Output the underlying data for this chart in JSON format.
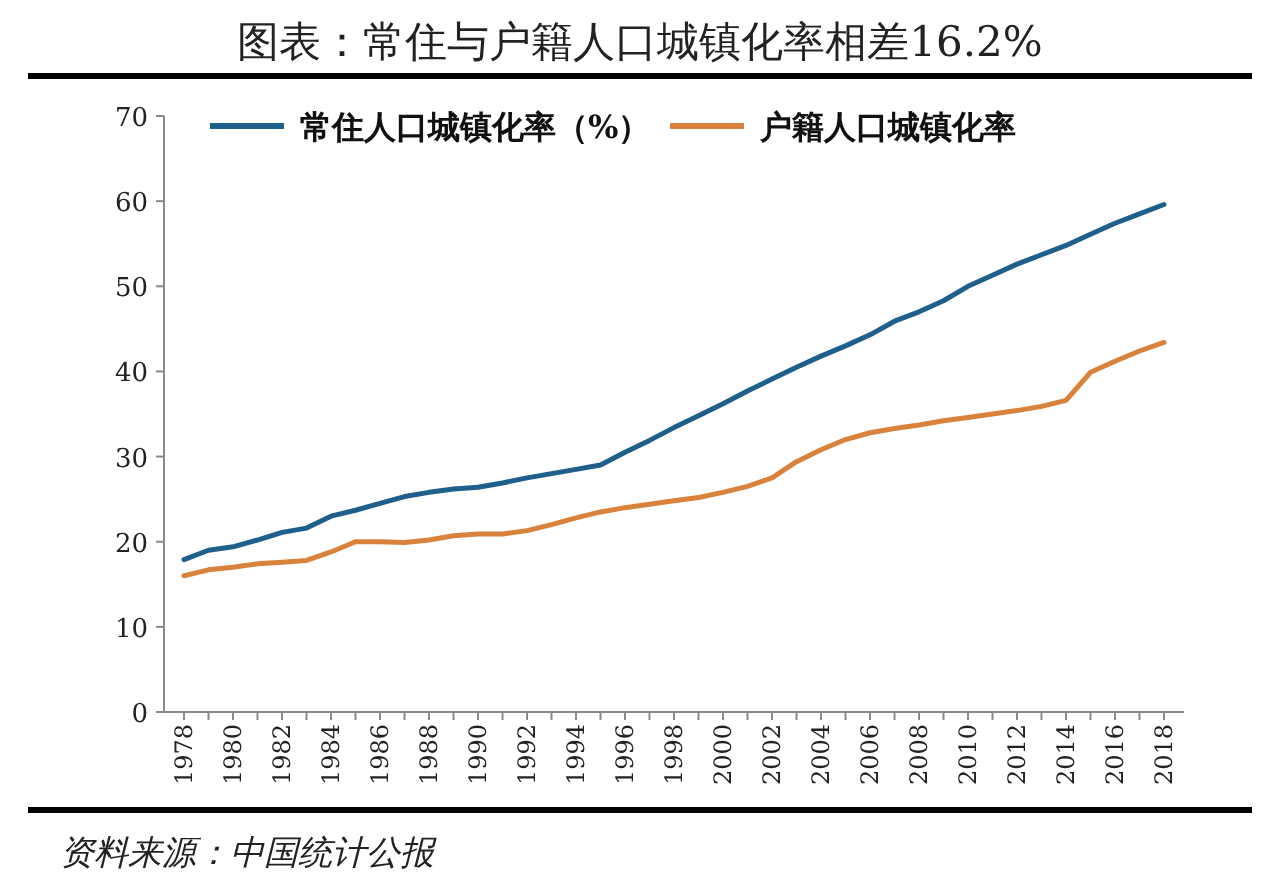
{
  "chart_data": {
    "type": "line",
    "title": "图表：常住与户籍人口城镇化率相差16.2%",
    "annotations": [
      "资料来源：中国统计公报"
    ],
    "categories": [
      "1978",
      null,
      "1980",
      null,
      "1982",
      null,
      "1984",
      null,
      "1986",
      null,
      "1988",
      null,
      "1990",
      null,
      "1992",
      null,
      "1994",
      null,
      "1996",
      null,
      "1998",
      null,
      "2000",
      null,
      "2002",
      null,
      "2004",
      null,
      "2006",
      null,
      "2008",
      null,
      "2010",
      null,
      "2012",
      null,
      "2014",
      null,
      "2016",
      null,
      "2018"
    ],
    "series": [
      {
        "name": "常住人口城镇化率（%）",
        "color": "#1f5f8b",
        "values": [
          17.9,
          19.0,
          19.4,
          20.2,
          21.1,
          21.6,
          23.0,
          23.7,
          24.5,
          25.3,
          25.8,
          26.2,
          26.4,
          26.9,
          27.5,
          28.0,
          28.5,
          29.0,
          30.5,
          31.9,
          33.4,
          34.8,
          36.2,
          37.7,
          39.1,
          40.5,
          41.8,
          43.0,
          44.3,
          45.9,
          47.0,
          48.3,
          50.0,
          51.3,
          52.6,
          53.7,
          54.8,
          56.1,
          57.4,
          58.5,
          59.6
        ]
      },
      {
        "name": "户籍人口城镇化率",
        "color": "#d9823b",
        "values": [
          16.0,
          16.7,
          17.0,
          17.4,
          17.6,
          17.8,
          18.8,
          20.0,
          20.0,
          19.9,
          20.2,
          20.7,
          20.9,
          20.9,
          21.3,
          22.0,
          22.8,
          23.5,
          24.0,
          24.4,
          24.8,
          25.2,
          25.8,
          26.5,
          27.5,
          29.4,
          30.8,
          32.0,
          32.8,
          33.3,
          33.7,
          34.2,
          34.6,
          35.0,
          35.4,
          35.9,
          36.6,
          39.9,
          41.2,
          42.4,
          43.4
        ]
      }
    ],
    "ylim": [
      0,
      70
    ],
    "yticks": [
      0,
      10,
      20,
      30,
      40,
      50,
      60,
      70
    ],
    "grid": false,
    "legend": "top",
    "marker": "none",
    "line_style": "solid"
  }
}
